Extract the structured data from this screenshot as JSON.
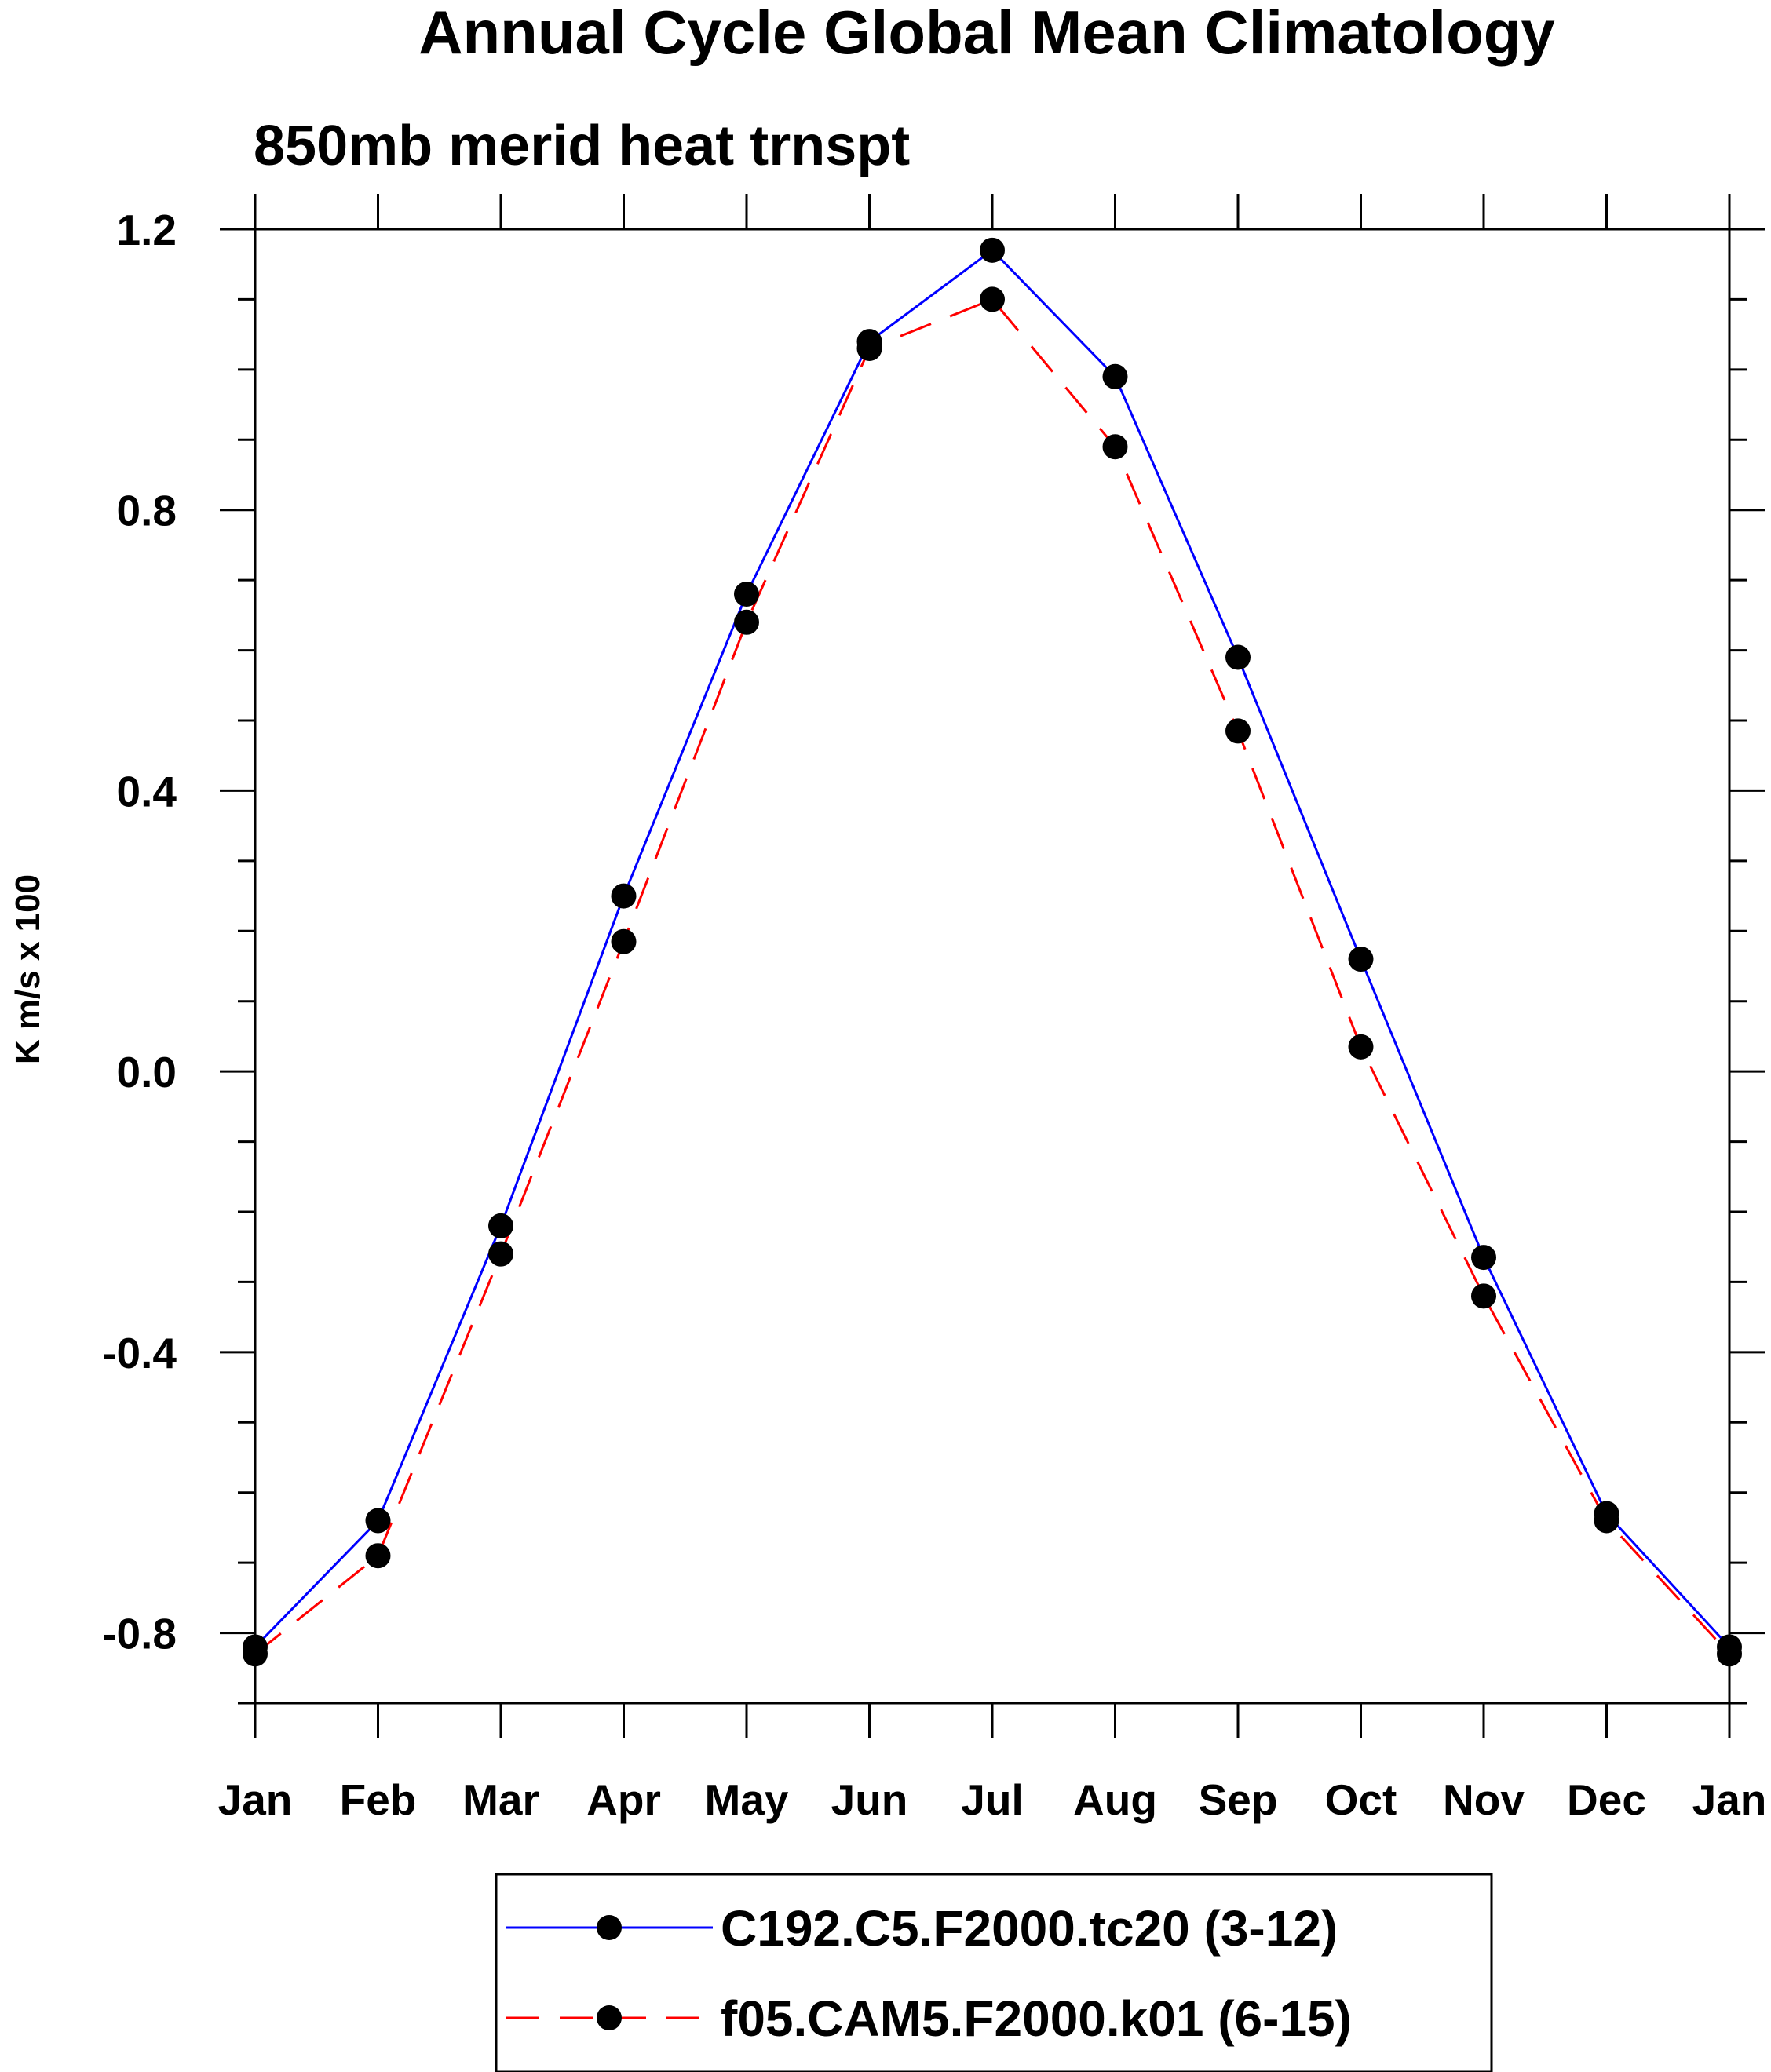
{
  "chart_data": {
    "type": "line",
    "title": "Annual Cycle Global Mean Climatology",
    "subtitle": "850mb merid heat trnspt",
    "ylabel": "K m/s x 100",
    "xlabel": "",
    "categories": [
      "Jan",
      "Feb",
      "Mar",
      "Apr",
      "May",
      "Jun",
      "Jul",
      "Aug",
      "Sep",
      "Oct",
      "Nov",
      "Dec",
      "Jan"
    ],
    "ylim": [
      -0.9,
      1.2
    ],
    "yticks": [
      "-0.8",
      "-0.4",
      "0.0",
      "0.4",
      "0.8",
      "1.2"
    ],
    "ytick_values": [
      -0.8,
      -0.4,
      0.0,
      0.4,
      0.8,
      1.2
    ],
    "grid": false,
    "legend_position": "bottom",
    "series": [
      {
        "name": "C192.C5.F2000.tc20 (3-12)",
        "color": "#0000ff",
        "dash": "solid",
        "marker": "filled-circle",
        "values": [
          -0.82,
          -0.64,
          -0.22,
          0.25,
          0.68,
          1.04,
          1.17,
          0.99,
          0.59,
          0.16,
          -0.265,
          -0.63,
          -0.82
        ]
      },
      {
        "name": "f05.CAM5.F2000.k01 (6-15)",
        "color": "#ff0000",
        "dash": "dashed",
        "marker": "filled-circle",
        "values": [
          -0.83,
          -0.69,
          -0.26,
          0.185,
          0.64,
          1.03,
          1.1,
          0.89,
          0.485,
          0.035,
          -0.32,
          -0.64,
          -0.83
        ]
      }
    ]
  }
}
